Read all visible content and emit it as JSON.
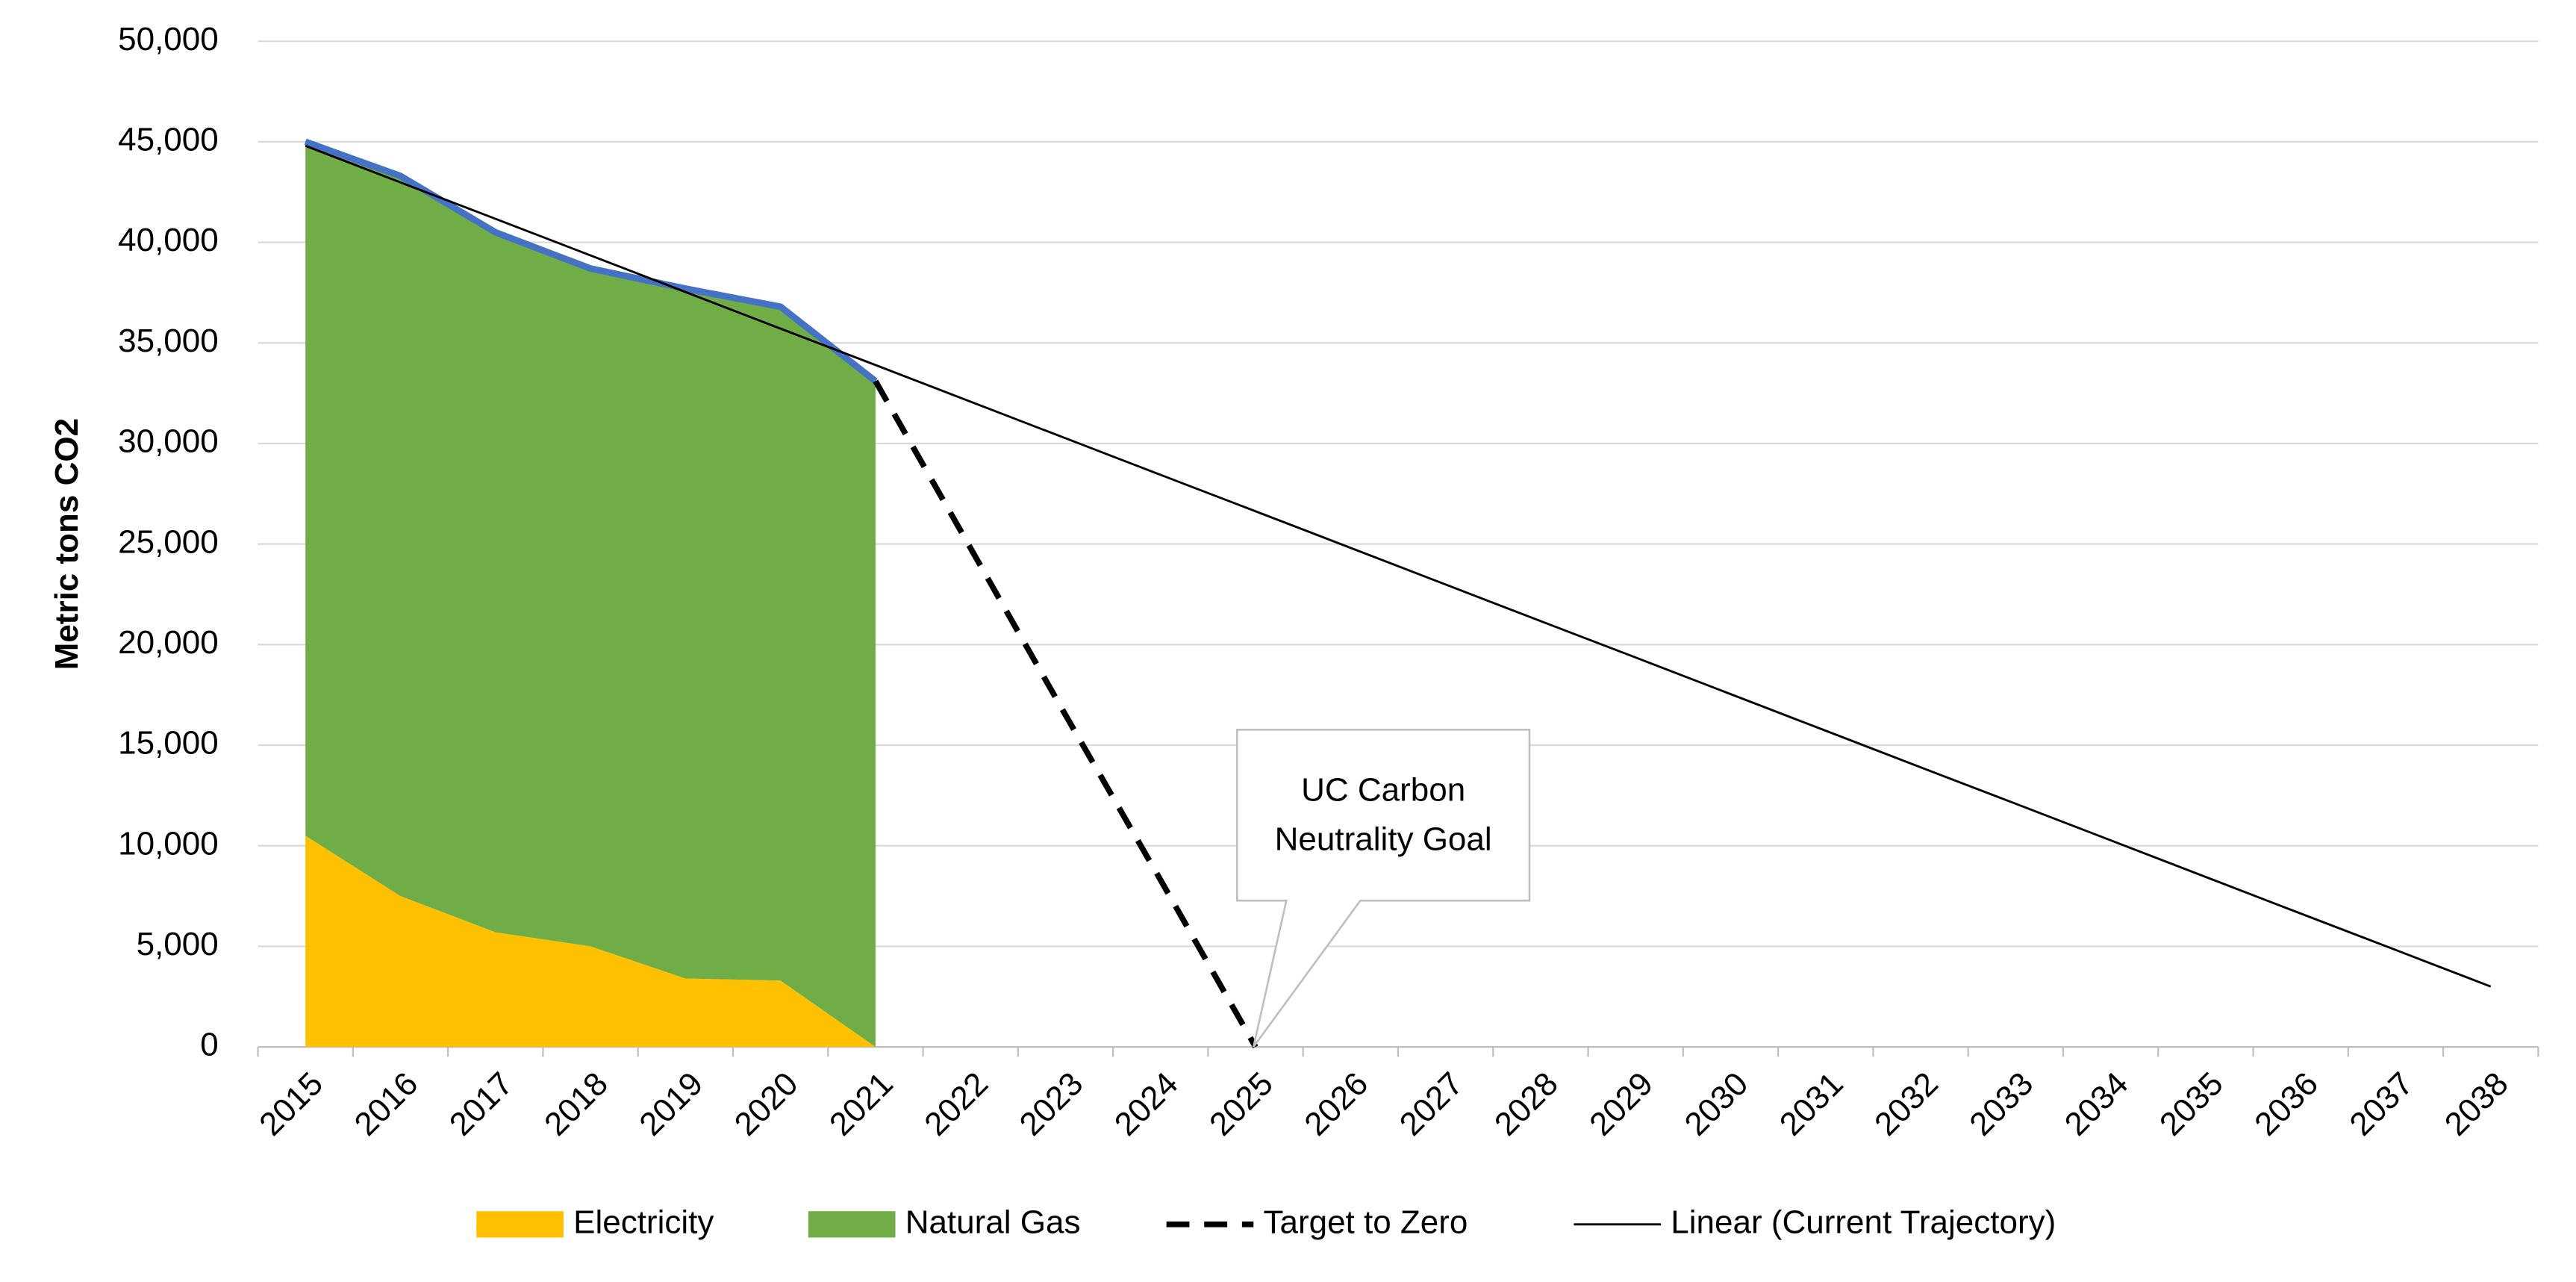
{
  "chart_data": {
    "type": "area",
    "y_label": "Metric tons CO2",
    "categories": [
      "2015",
      "2016",
      "2017",
      "2018",
      "2019",
      "2020",
      "2021",
      "2022",
      "2023",
      "2024",
      "2025",
      "2026",
      "2027",
      "2028",
      "2029",
      "2030",
      "2031",
      "2032",
      "2033",
      "2034",
      "2035",
      "2036",
      "2037",
      "2038"
    ],
    "series": [
      {
        "name": "Electricity",
        "color": "#ffc000",
        "kind": "area",
        "values": [
          10500,
          7500,
          5700,
          5000,
          3400,
          3300,
          0,
          null,
          null,
          null,
          null,
          null,
          null,
          null,
          null,
          null,
          null,
          null,
          null,
          null,
          null,
          null,
          null,
          null
        ]
      },
      {
        "name": "Natural Gas",
        "color": "#70ad47",
        "outline_color": "#4472c4",
        "kind": "area",
        "values": [
          34500,
          35800,
          34800,
          33700,
          34300,
          33500,
          33100,
          null,
          null,
          null,
          null,
          null,
          null,
          null,
          null,
          null,
          null,
          null,
          null,
          null,
          null,
          null,
          null,
          null
        ]
      },
      {
        "name": "Target to Zero",
        "color": "#000000",
        "kind": "dashed-line",
        "values": [
          null,
          null,
          null,
          null,
          null,
          null,
          33100,
          24800,
          16500,
          8300,
          0,
          null,
          null,
          null,
          null,
          null,
          null,
          null,
          null,
          null,
          null,
          null,
          null,
          null
        ]
      },
      {
        "name": "Linear (Current Trajectory)",
        "color": "#000000",
        "kind": "line",
        "values": [
          44800,
          42980,
          41170,
          39350,
          37530,
          35710,
          33900,
          32080,
          30260,
          28440,
          26630,
          24810,
          22990,
          21170,
          19360,
          17540,
          15720,
          13900,
          12090,
          10270,
          8450,
          6630,
          4820,
          3000
        ]
      }
    ],
    "ylim": [
      0,
      50000
    ],
    "yticks": [
      0,
      {
        "value": 5000,
        "label": "5,000"
      },
      {
        "value": 10000,
        "label": "10,000"
      },
      {
        "value": 15000,
        "label": "15,000"
      },
      {
        "value": 20000,
        "label": "20,000"
      },
      {
        "value": 25000,
        "label": "25,000"
      },
      {
        "value": 30000,
        "label": "30,000"
      },
      {
        "value": 35000,
        "label": "35,000"
      },
      {
        "value": 40000,
        "label": "40,000"
      },
      {
        "value": 45000,
        "label": "45,000"
      },
      {
        "value": 50000,
        "label": "50,000"
      }
    ],
    "grid": true,
    "legend": "bottom",
    "annotation": {
      "lines": [
        "UC Carbon",
        "Neutrality Goal"
      ]
    }
  }
}
